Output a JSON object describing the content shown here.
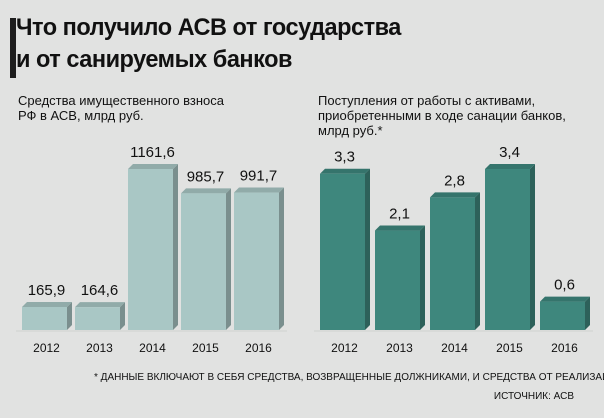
{
  "header": {
    "title_line1": "Что получило АСВ от государства",
    "title_line2": "и от санируемых банков"
  },
  "chart_data": [
    {
      "type": "bar",
      "title": "Средства имущественного взноса РФ в АСВ, млрд руб.",
      "categories": [
        "2012",
        "2013",
        "2014",
        "2015",
        "2016"
      ],
      "values": [
        165.9,
        164.6,
        1161.6,
        985.7,
        991.7
      ],
      "value_labels": [
        "165,9",
        "164,6",
        "1161,6",
        "985,7",
        "991,7"
      ],
      "color": "#a9c7c5"
    },
    {
      "type": "bar",
      "title": "Поступления от работы с активами, приобретенными в ходе санации банков, млрд руб.*",
      "categories": [
        "2012",
        "2013",
        "2014",
        "2015",
        "2016"
      ],
      "values": [
        3.3,
        2.1,
        2.8,
        3.4,
        0.6
      ],
      "value_labels": [
        "3,3",
        "2,1",
        "2,8",
        "3,4",
        "0,6"
      ],
      "color": "#3e877d"
    }
  ],
  "footnote": "* ДАННЫЕ ВКЛЮЧАЮТ В СЕБЯ СРЕДСТВА, ВОЗВРАЩЕННЫЕ ДОЛЖНИКАМИ, И СРЕДСТВА ОТ РЕАЛИЗАЦИИ АКТИВОВ",
  "source": "ИСТОЧНИК: АСВ"
}
